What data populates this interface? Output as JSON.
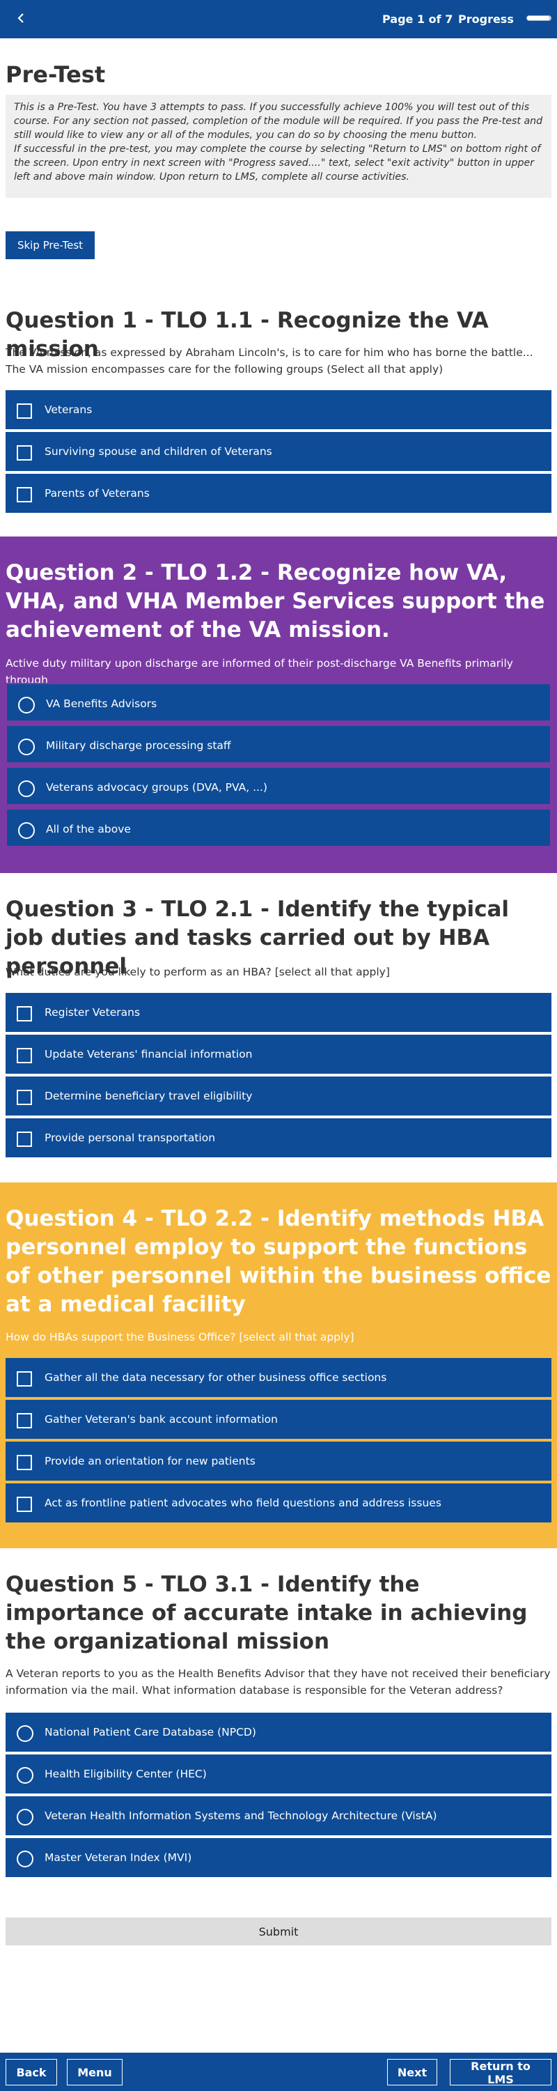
{
  "topbar": {
    "back_icon": "chevron-left-icon",
    "page_indicator": "Page 1 of 7",
    "progress_label": "Progress",
    "progress_fraction": 0.9
  },
  "intro": {
    "title": "Pre-Test",
    "notice_line1": "This is a Pre-Test. You have 3 attempts to pass. If you successfully achieve 100% you will test out of this course. For any section not passed, completion of the module will be required. If you pass the Pre-test and still would like to view any or all of the modules, you can do so by choosing the menu button.",
    "notice_line2": "If successful in the pre-test, you may complete the course by selecting \"Return to LMS\" on bottom right of the screen. Upon entry in next screen with \"Progress saved....\" text, select \"exit activity\" button in upper left and above main window. Upon return to LMS, complete all course activities.",
    "skip_label": "Skip Pre-Test"
  },
  "questions": [
    {
      "title": "Question 1 - TLO 1.1 - Recognize the VA mission",
      "prompt": "The VA mission, as expressed by Abraham Lincoln's, is to care for him who has borne the battle... The VA mission encompasses care for the following groups (Select all that apply)",
      "input_type": "checkbox",
      "options": [
        "Veterans",
        "Surviving spouse and children of Veterans",
        "Parents of Veterans"
      ]
    },
    {
      "title": "Question 2 - TLO 1.2 - Recognize how VA, VHA, and VHA Member Services support the achievement of the VA mission.",
      "prompt": "Active duty military upon discharge are informed of their post-discharge VA Benefits primarily  through",
      "input_type": "radio",
      "options": [
        "VA Benefits Advisors",
        "Military discharge processing staff",
        "Veterans advocacy groups (DVA, PVA, ...)",
        "All of the above"
      ]
    },
    {
      "title": "Question 3 - TLO 2.1 - Identify the typical job duties and tasks carried out by HBA personnel",
      "prompt": "What duties are you likely to perform as an HBA? [select all that apply]",
      "input_type": "checkbox",
      "options": [
        "Register Veterans",
        "Update Veterans' financial information",
        "Determine beneficiary travel eligibility",
        "Provide personal transportation"
      ]
    },
    {
      "title": "Question 4 - TLO 2.2 - Identify methods HBA personnel employ to support the functions of other personnel within the business office at a medical facility",
      "prompt": "How do HBAs support the Business Office? [select all that apply]",
      "input_type": "checkbox",
      "options": [
        "Gather all the data necessary for other business office sections",
        "Gather Veteran's bank account information",
        "Provide an orientation for new patients",
        "Act as frontline patient advocates who field questions and address issues"
      ]
    },
    {
      "title": "Question 5 - TLO 3.1 - Identify the importance of accurate intake in achieving the organizational mission",
      "prompt": "A Veteran reports to you as the Health Benefits Advisor that they have not received their beneficiary information via the mail. What information database is responsible for the Veteran address?",
      "input_type": "radio",
      "options": [
        "National Patient Care Database (NPCD)",
        "Health Eligibility Center (HEC)",
        "Veteran Health Information Systems and Technology Architecture (VistA)",
        "Master Veteran Index (MVI)"
      ]
    }
  ],
  "submit_label": "Submit",
  "bottombar": {
    "back_label": "Back",
    "menu_label": "Menu",
    "next_label": "Next",
    "return_label": "Return to LMS"
  },
  "colors": {
    "primary_blue": "#0e4c97",
    "question2_bg": "#7b3aa3",
    "question4_bg": "#f6b93e"
  }
}
